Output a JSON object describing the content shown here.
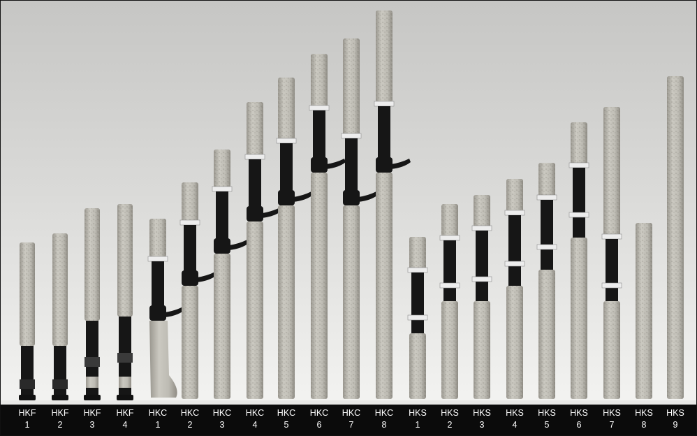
{
  "image": {
    "description": "Photograph of fishing rod handles arranged left to right with increasing height, labeled below",
    "colors": {
      "background_top": "#c9c9c7",
      "background_bottom": "#f2f2f0",
      "cork": "#c2c0b8",
      "cork_dark": "#8d8a82",
      "reel_seat": "#161616",
      "ring": "#ececec",
      "label_bar": "#0b0b0b",
      "label_text": "#ffffff"
    }
  },
  "labels": [
    {
      "line1": "HKF",
      "line2": "1"
    },
    {
      "line1": "HKF",
      "line2": "2"
    },
    {
      "line1": "HKF",
      "line2": "3"
    },
    {
      "line1": "HKF",
      "line2": "4"
    },
    {
      "line1": "HKC",
      "line2": "1"
    },
    {
      "line1": "HKC",
      "line2": "2"
    },
    {
      "line1": "HKC",
      "line2": "3"
    },
    {
      "line1": "HKC",
      "line2": "4"
    },
    {
      "line1": "HKC",
      "line2": "5"
    },
    {
      "line1": "HKC",
      "line2": "6"
    },
    {
      "line1": "HKC",
      "line2": "7"
    },
    {
      "line1": "HKC",
      "line2": "8"
    },
    {
      "line1": "HKS",
      "line2": "1"
    },
    {
      "line1": "HKS",
      "line2": "2"
    },
    {
      "line1": "HKS",
      "line2": "3"
    },
    {
      "line1": "HKS",
      "line2": "4"
    },
    {
      "line1": "HKS",
      "line2": "5"
    },
    {
      "line1": "HKS",
      "line2": "6"
    },
    {
      "line1": "HKS",
      "line2": "7"
    },
    {
      "line1": "HKS",
      "line2": "8"
    },
    {
      "line1": "HKS",
      "line2": "9"
    }
  ]
}
